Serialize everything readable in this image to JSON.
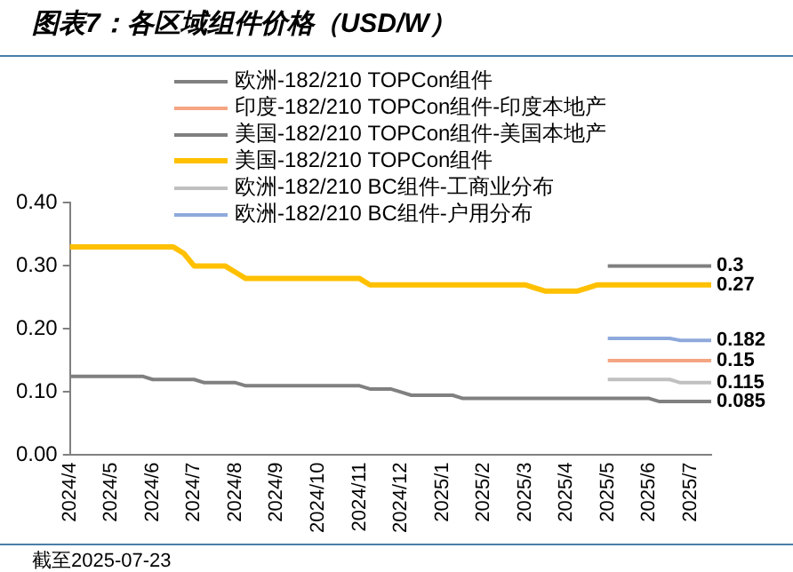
{
  "chart_data": {
    "type": "line",
    "title": "图表7：各区域组件价格（USD/W）",
    "categories": [
      "2024/4",
      null,
      null,
      null,
      "2024/5",
      null,
      null,
      null,
      "2024/6",
      null,
      null,
      null,
      "2024/7",
      null,
      null,
      null,
      "2024/8",
      null,
      null,
      null,
      "2024/9",
      null,
      null,
      null,
      "2024/10",
      null,
      null,
      null,
      "2024/11",
      null,
      null,
      null,
      "2024/12",
      null,
      null,
      null,
      "2025/1",
      null,
      null,
      null,
      "2025/2",
      null,
      null,
      null,
      "2025/3",
      null,
      null,
      null,
      "2025/4",
      null,
      null,
      null,
      "2025/5",
      null,
      null,
      null,
      "2025/6",
      null,
      null,
      null,
      "2025/7",
      null,
      null
    ],
    "series": [
      {
        "name": "欧洲-182/210 TOPCon组件",
        "color": "#808080",
        "values": [
          0.125,
          0.125,
          0.125,
          0.125,
          0.125,
          0.125,
          0.125,
          0.125,
          0.12,
          0.12,
          0.12,
          0.12,
          0.12,
          0.115,
          0.115,
          0.115,
          0.115,
          0.11,
          0.11,
          0.11,
          0.11,
          0.11,
          0.11,
          0.11,
          0.11,
          0.11,
          0.11,
          0.11,
          0.11,
          0.105,
          0.105,
          0.105,
          0.1,
          0.095,
          0.095,
          0.095,
          0.095,
          0.095,
          0.09,
          0.09,
          0.09,
          0.09,
          0.09,
          0.09,
          0.09,
          0.09,
          0.09,
          0.09,
          0.09,
          0.09,
          0.09,
          0.09,
          0.09,
          0.09,
          0.09,
          0.09,
          0.09,
          0.085,
          0.085,
          0.085,
          0.085,
          0.085,
          0.085
        ],
        "value_labels": [
          null,
          null,
          null,
          null,
          null,
          null,
          null,
          null,
          null,
          null,
          null,
          null,
          null,
          null,
          null,
          null,
          null,
          null,
          null,
          null,
          null,
          null,
          null,
          null,
          null,
          null,
          null,
          null,
          null,
          null,
          null,
          null,
          null,
          null,
          null,
          null,
          null,
          null,
          null,
          null,
          null,
          null,
          null,
          null,
          null,
          null,
          null,
          null,
          null,
          null,
          null,
          null,
          null,
          null,
          null,
          null,
          null,
          null,
          null,
          null,
          null,
          null,
          "0.085"
        ]
      },
      {
        "name": "印度-182/210 TOPCon组件-印度本地产",
        "color": "#f4a582",
        "values": [
          null,
          null,
          null,
          null,
          null,
          null,
          null,
          null,
          null,
          null,
          null,
          null,
          null,
          null,
          null,
          null,
          null,
          null,
          null,
          null,
          null,
          null,
          null,
          null,
          null,
          null,
          null,
          null,
          null,
          null,
          null,
          null,
          null,
          null,
          null,
          null,
          null,
          null,
          null,
          null,
          null,
          null,
          null,
          null,
          null,
          null,
          null,
          null,
          null,
          null,
          null,
          null,
          0.15,
          0.15,
          0.15,
          0.15,
          0.15,
          0.15,
          0.15,
          0.15,
          0.15,
          0.15,
          0.15
        ],
        "value_labels": [
          null,
          null,
          null,
          null,
          null,
          null,
          null,
          null,
          null,
          null,
          null,
          null,
          null,
          null,
          null,
          null,
          null,
          null,
          null,
          null,
          null,
          null,
          null,
          null,
          null,
          null,
          null,
          null,
          null,
          null,
          null,
          null,
          null,
          null,
          null,
          null,
          null,
          null,
          null,
          null,
          null,
          null,
          null,
          null,
          null,
          null,
          null,
          null,
          null,
          null,
          null,
          null,
          null,
          null,
          null,
          null,
          null,
          null,
          null,
          null,
          null,
          null,
          "0.15"
        ]
      },
      {
        "name": "美国-182/210 TOPCon组件-美国本地产",
        "color": "#7f7f7f",
        "values": [
          null,
          null,
          null,
          null,
          null,
          null,
          null,
          null,
          null,
          null,
          null,
          null,
          null,
          null,
          null,
          null,
          null,
          null,
          null,
          null,
          null,
          null,
          null,
          null,
          null,
          null,
          null,
          null,
          null,
          null,
          null,
          null,
          null,
          null,
          null,
          null,
          null,
          null,
          null,
          null,
          null,
          null,
          null,
          null,
          null,
          null,
          null,
          null,
          null,
          null,
          null,
          null,
          0.3,
          0.3,
          0.3,
          0.3,
          0.3,
          0.3,
          0.3,
          0.3,
          0.3,
          0.3,
          0.3
        ],
        "value_labels": [
          null,
          null,
          null,
          null,
          null,
          null,
          null,
          null,
          null,
          null,
          null,
          null,
          null,
          null,
          null,
          null,
          null,
          null,
          null,
          null,
          null,
          null,
          null,
          null,
          null,
          null,
          null,
          null,
          null,
          null,
          null,
          null,
          null,
          null,
          null,
          null,
          null,
          null,
          null,
          null,
          null,
          null,
          null,
          null,
          null,
          null,
          null,
          null,
          null,
          null,
          null,
          null,
          null,
          null,
          null,
          null,
          null,
          null,
          null,
          null,
          null,
          null,
          "0.3"
        ]
      },
      {
        "name": "美国-182/210 TOPCon组件",
        "color": "#ffc000",
        "values": [
          0.33,
          0.33,
          0.33,
          0.33,
          0.33,
          0.33,
          0.33,
          0.33,
          0.33,
          0.33,
          0.33,
          0.32,
          0.3,
          0.3,
          0.3,
          0.3,
          0.29,
          0.28,
          0.28,
          0.28,
          0.28,
          0.28,
          0.28,
          0.28,
          0.28,
          0.28,
          0.28,
          0.28,
          0.28,
          0.27,
          0.27,
          0.27,
          0.27,
          0.27,
          0.27,
          0.27,
          0.27,
          0.27,
          0.27,
          0.27,
          0.27,
          0.27,
          0.27,
          0.27,
          0.27,
          0.265,
          0.26,
          0.26,
          0.26,
          0.26,
          0.265,
          0.27,
          0.27,
          0.27,
          0.27,
          0.27,
          0.27,
          0.27,
          0.27,
          0.27,
          0.27,
          0.27,
          0.27
        ],
        "value_labels": [
          null,
          null,
          null,
          null,
          null,
          null,
          null,
          null,
          null,
          null,
          null,
          null,
          null,
          null,
          null,
          null,
          null,
          null,
          null,
          null,
          null,
          null,
          null,
          null,
          null,
          null,
          null,
          null,
          null,
          null,
          null,
          null,
          null,
          null,
          null,
          null,
          null,
          null,
          null,
          null,
          null,
          null,
          null,
          null,
          null,
          null,
          null,
          null,
          null,
          null,
          null,
          null,
          null,
          null,
          null,
          null,
          null,
          null,
          null,
          null,
          null,
          null,
          "0.27"
        ]
      },
      {
        "name": "欧洲-182/210 BC组件-工商业分布",
        "color": "#c0c0c0",
        "values": [
          null,
          null,
          null,
          null,
          null,
          null,
          null,
          null,
          null,
          null,
          null,
          null,
          null,
          null,
          null,
          null,
          null,
          null,
          null,
          null,
          null,
          null,
          null,
          null,
          null,
          null,
          null,
          null,
          null,
          null,
          null,
          null,
          null,
          null,
          null,
          null,
          null,
          null,
          null,
          null,
          null,
          null,
          null,
          null,
          null,
          null,
          null,
          null,
          null,
          null,
          null,
          null,
          0.12,
          0.12,
          0.12,
          0.12,
          0.12,
          0.12,
          0.12,
          0.115,
          0.115,
          0.115,
          0.115
        ],
        "value_labels": [
          null,
          null,
          null,
          null,
          null,
          null,
          null,
          null,
          null,
          null,
          null,
          null,
          null,
          null,
          null,
          null,
          null,
          null,
          null,
          null,
          null,
          null,
          null,
          null,
          null,
          null,
          null,
          null,
          null,
          null,
          null,
          null,
          null,
          null,
          null,
          null,
          null,
          null,
          null,
          null,
          null,
          null,
          null,
          null,
          null,
          null,
          null,
          null,
          null,
          null,
          null,
          null,
          null,
          null,
          null,
          null,
          null,
          null,
          null,
          null,
          null,
          null,
          "0.115"
        ]
      },
      {
        "name": "欧洲-182/210 BC组件-户用分布",
        "color": "#8ea9db",
        "values": [
          null,
          null,
          null,
          null,
          null,
          null,
          null,
          null,
          null,
          null,
          null,
          null,
          null,
          null,
          null,
          null,
          null,
          null,
          null,
          null,
          null,
          null,
          null,
          null,
          null,
          null,
          null,
          null,
          null,
          null,
          null,
          null,
          null,
          null,
          null,
          null,
          null,
          null,
          null,
          null,
          null,
          null,
          null,
          null,
          null,
          null,
          null,
          null,
          null,
          null,
          null,
          null,
          0.185,
          0.185,
          0.185,
          0.185,
          0.185,
          0.185,
          0.185,
          0.182,
          0.182,
          0.182,
          0.182
        ],
        "value_labels": [
          null,
          null,
          null,
          null,
          null,
          null,
          null,
          null,
          null,
          null,
          null,
          null,
          null,
          null,
          null,
          null,
          null,
          null,
          null,
          null,
          null,
          null,
          null,
          null,
          null,
          null,
          null,
          null,
          null,
          null,
          null,
          null,
          null,
          null,
          null,
          null,
          null,
          null,
          null,
          null,
          null,
          null,
          null,
          null,
          null,
          null,
          null,
          null,
          null,
          null,
          null,
          null,
          null,
          null,
          null,
          null,
          null,
          null,
          null,
          null,
          null,
          null,
          "0.182"
        ]
      }
    ],
    "ylim": [
      0,
      0.4
    ],
    "yticks": [
      {
        "value": 0,
        "label": "0.00"
      },
      {
        "value": 0.1,
        "label": "0.10"
      },
      {
        "value": 0.2,
        "label": "0.20"
      },
      {
        "value": 0.3,
        "label": "0.30"
      },
      {
        "value": 0.4,
        "label": "0.40"
      }
    ],
    "grid": false,
    "legend": "top",
    "marker": "none",
    "annotations": [
      "截至2025-07-23"
    ]
  }
}
